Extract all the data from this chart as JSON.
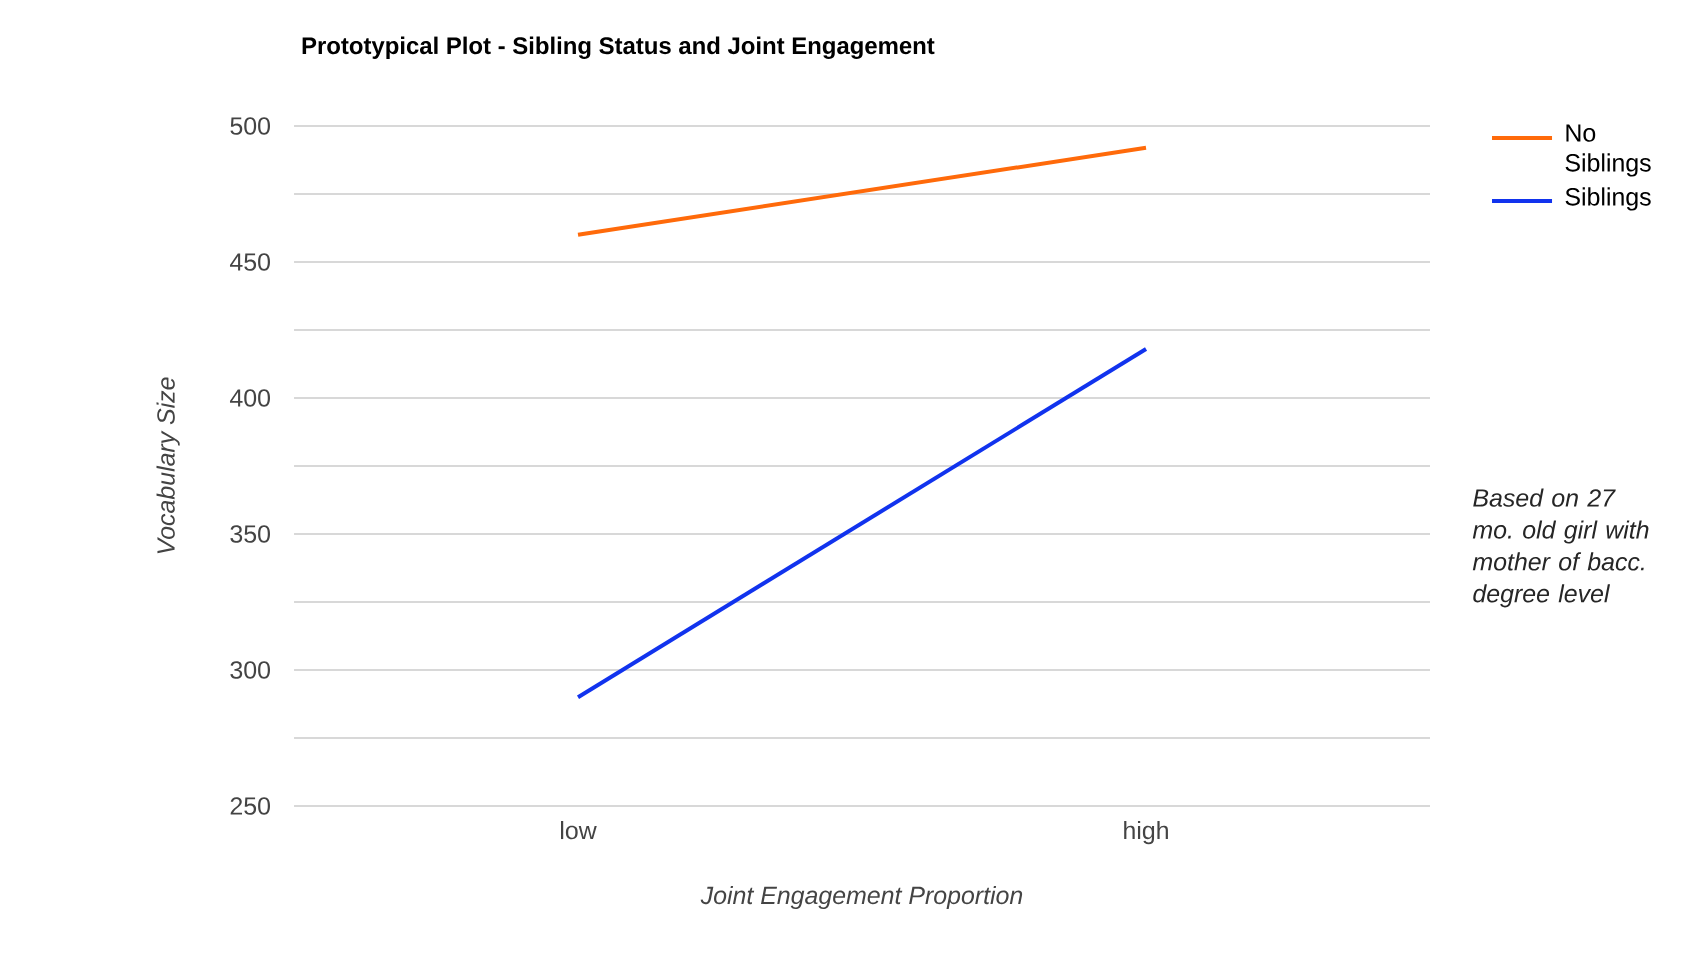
{
  "chart_data": {
    "type": "line",
    "title": "Prototypical Plot - Sibling Status and Joint Engagement",
    "xlabel": "Joint Engagement Proportion",
    "ylabel": "Vocabulary Size",
    "categories": [
      "low",
      "high"
    ],
    "series": [
      {
        "name": "No Siblings",
        "color": "#ff6a0a",
        "values": [
          460,
          492
        ]
      },
      {
        "name": "Siblings",
        "color": "#1133ee",
        "values": [
          290,
          418
        ]
      }
    ],
    "ylim": [
      250,
      500
    ],
    "yticks": [
      250,
      {
        "value": 275,
        "label": null
      },
      300,
      {
        "value": 325,
        "label": null
      },
      350,
      {
        "value": 375,
        "label": null
      },
      400,
      {
        "value": 425,
        "label": null
      },
      450,
      {
        "value": 475,
        "label": null
      },
      500
    ],
    "grid": "y",
    "legend": "right",
    "marker": "none",
    "line_style": "solid",
    "annotations": [
      "Based on 27 mo. old girl with mother of bacc. degree level"
    ]
  }
}
